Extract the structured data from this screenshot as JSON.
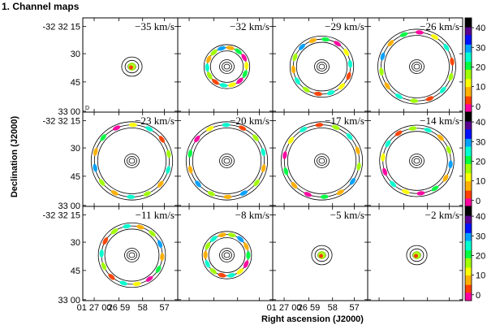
{
  "figure": {
    "title": "1. Channel maps",
    "ylabel": "Declination (J2000)",
    "xlabel": "Right ascension (J2000)"
  },
  "dec_ticks": [
    "-32 32 15",
    "30",
    "45",
    "33 00"
  ],
  "ra_ticks": [
    "01 27 00",
    "26 59",
    "58",
    "57"
  ],
  "colorbar": {
    "ticks": [
      "40",
      "30",
      "20",
      "10",
      "0"
    ],
    "colors": [
      "#000000",
      "#5a0090",
      "#0010ff",
      "#00a0ff",
      "#00ffd0",
      "#00ff40",
      "#a0ff00",
      "#ffff00",
      "#ffb000",
      "#ff4000",
      "#ff00a0",
      "#ffffff"
    ]
  },
  "panel_corner_label": "D",
  "chart_data": {
    "type": "heatmap",
    "title": "1. Channel maps",
    "xlabel": "Right ascension (J2000)",
    "ylabel": "Declination (J2000)",
    "colorbar_range": [
      0,
      45
    ],
    "velocity_unit": "km/s",
    "panels": [
      {
        "velocity": "−35 km/s",
        "ring_radius": 0.0
      },
      {
        "velocity": "−32 km/s",
        "ring_radius": 0.55
      },
      {
        "velocity": "−29 km/s",
        "ring_radius": 0.8
      },
      {
        "velocity": "−26 km/s",
        "ring_radius": 1.0
      },
      {
        "velocity": "−23 km/s",
        "ring_radius": 1.05
      },
      {
        "velocity": "−20 km/s",
        "ring_radius": 1.05
      },
      {
        "velocity": "−17 km/s",
        "ring_radius": 1.05
      },
      {
        "velocity": "−14 km/s",
        "ring_radius": 0.95
      },
      {
        "velocity": "−11 km/s",
        "ring_radius": 0.85
      },
      {
        "velocity": "−8 km/s",
        "ring_radius": 0.6
      },
      {
        "velocity": "−5 km/s",
        "ring_radius": 0.0
      },
      {
        "velocity": "−2 km/s",
        "ring_radius": 0.0
      }
    ]
  }
}
